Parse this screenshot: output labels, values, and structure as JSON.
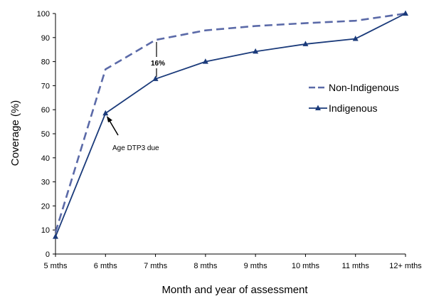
{
  "chart_data": {
    "type": "line",
    "categories": [
      "5 mths",
      "6 mths",
      "7 mths",
      "8 mths",
      "9 mths",
      "10 mths",
      "11 mths",
      "12+ mths"
    ],
    "series": [
      {
        "name": "Non-Indigenous",
        "values": [
          9,
          76.8,
          89,
          93,
          94.8,
          96,
          97,
          100
        ],
        "color": "#5b6aa8",
        "style": "dashed",
        "marker": "none"
      },
      {
        "name": "Indigenous",
        "values": [
          7.2,
          58.5,
          72.8,
          80,
          84.2,
          87.3,
          89.5,
          100
        ],
        "color": "#1a3a7a",
        "style": "solid",
        "marker": "triangle"
      }
    ],
    "ylim": [
      0,
      100
    ],
    "yticks": [
      0,
      10,
      20,
      30,
      40,
      50,
      60,
      70,
      80,
      90,
      100
    ],
    "xlabel": "Month and year of assessment",
    "ylabel": "Coverage (%)",
    "grid": false,
    "legend_placement": "right",
    "annotations": {
      "gap_label": "16%",
      "arrow_label": "Age DTP3 due"
    }
  }
}
